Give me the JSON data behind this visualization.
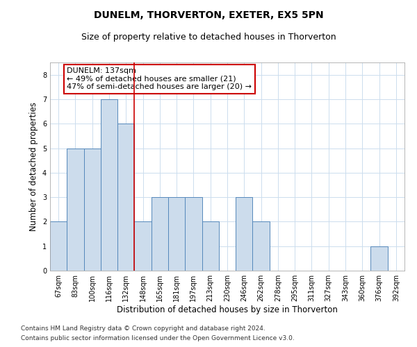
{
  "title": "DUNELM, THORVERTON, EXETER, EX5 5PN",
  "subtitle": "Size of property relative to detached houses in Thorverton",
  "xlabel": "Distribution of detached houses by size in Thorverton",
  "ylabel": "Number of detached properties",
  "categories": [
    "67sqm",
    "83sqm",
    "100sqm",
    "116sqm",
    "132sqm",
    "148sqm",
    "165sqm",
    "181sqm",
    "197sqm",
    "213sqm",
    "230sqm",
    "246sqm",
    "262sqm",
    "278sqm",
    "295sqm",
    "311sqm",
    "327sqm",
    "343sqm",
    "360sqm",
    "376sqm",
    "392sqm"
  ],
  "values": [
    2,
    5,
    5,
    7,
    6,
    2,
    3,
    3,
    3,
    2,
    0,
    3,
    2,
    0,
    0,
    0,
    0,
    0,
    0,
    1,
    0
  ],
  "bar_color": "#ccdcec",
  "bar_edge_color": "#5588bb",
  "red_line_x": 4.5,
  "annotation_text": "DUNELM: 137sqm\n← 49% of detached houses are smaller (21)\n47% of semi-detached houses are larger (20) →",
  "annotation_box_color": "#ffffff",
  "annotation_box_edge": "#cc0000",
  "ylim": [
    0,
    8.5
  ],
  "yticks": [
    0,
    1,
    2,
    3,
    4,
    5,
    6,
    7,
    8
  ],
  "grid_color": "#ccddee",
  "footer_line1": "Contains HM Land Registry data © Crown copyright and database right 2024.",
  "footer_line2": "Contains public sector information licensed under the Open Government Licence v3.0.",
  "title_fontsize": 10,
  "subtitle_fontsize": 9,
  "axis_label_fontsize": 8.5,
  "tick_fontsize": 7,
  "footer_fontsize": 6.5,
  "annotation_fontsize": 8
}
